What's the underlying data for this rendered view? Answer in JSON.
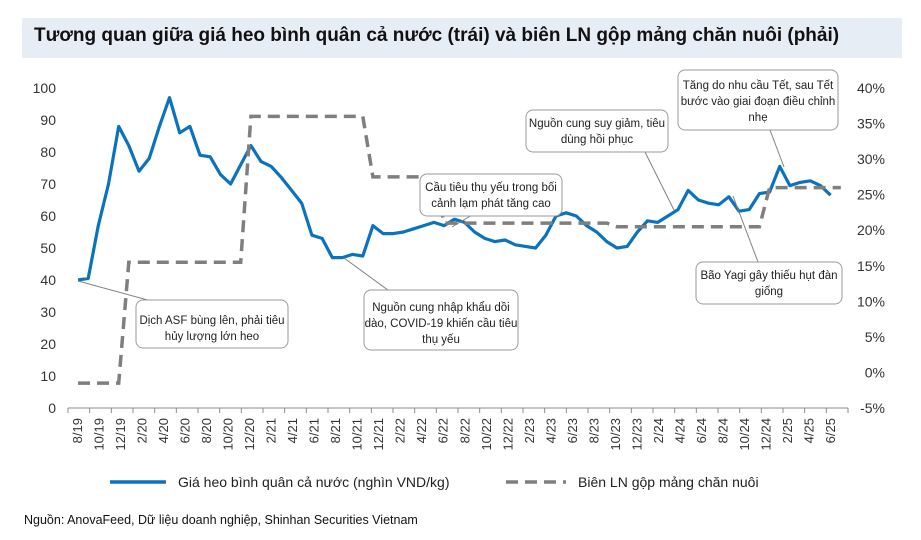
{
  "title": "Tương quan giữa giá heo bình quân cả nước (trái) và biên LN gộp mảng chăn nuôi (phải)",
  "source": "Nguồn: AnovaFeed, Dữ liệu doanh nghiệp, Shinhan Securities Vietnam",
  "colors": {
    "price_line": "#0b72be",
    "margin_line": "#7f7f7f",
    "title_bg": "#e7edf5"
  },
  "chart_data": {
    "type": "line",
    "x_tick_labels": [
      "8/19",
      "10/19",
      "12/19",
      "2/20",
      "4/20",
      "6/20",
      "8/20",
      "10/20",
      "12/20",
      "2/21",
      "4/21",
      "6/21",
      "8/21",
      "10/21",
      "12/21",
      "2/22",
      "4/22",
      "6/22",
      "8/22",
      "10/22",
      "12/22",
      "2/23",
      "4/23",
      "6/23",
      "8/23",
      "10/23",
      "12/23",
      "2/24",
      "4/24",
      "6/24",
      "8/24",
      "10/24",
      "12/24",
      "2/25",
      "4/25",
      "6/25"
    ],
    "y_left": {
      "ticks": [
        "0",
        "10",
        "20",
        "30",
        "40",
        "50",
        "60",
        "70",
        "80",
        "90",
        "100"
      ],
      "range": [
        0,
        100
      ]
    },
    "y_right": {
      "ticks": [
        "-5%",
        "0%",
        "5%",
        "10%",
        "15%",
        "20%",
        "25%",
        "30%",
        "35%",
        "40%"
      ],
      "range": [
        -5,
        40
      ]
    },
    "series": [
      {
        "name": "Giá heo bình quân cả nước (nghìn VND/kg)",
        "axis": "left",
        "style": "solid",
        "x": [
          0,
          1,
          2,
          3,
          4,
          5,
          6,
          7,
          8,
          9,
          10,
          11,
          12,
          13,
          14,
          15,
          16,
          17,
          18,
          19,
          20,
          21,
          22,
          23,
          24,
          25,
          26,
          27,
          28,
          29,
          30,
          31,
          32,
          33,
          34,
          35,
          36,
          37,
          38,
          39,
          40,
          41,
          42,
          43,
          44,
          45,
          46,
          47,
          48,
          49,
          50,
          51,
          52,
          53,
          54,
          55,
          56,
          57,
          58,
          59,
          60,
          61,
          62,
          63,
          64,
          65,
          66,
          67,
          68,
          69,
          70,
          71,
          72,
          73,
          74
        ],
        "values": [
          40,
          40.5,
          57,
          70,
          88,
          82,
          74,
          78,
          88,
          97,
          86,
          88,
          79,
          78.5,
          73,
          70,
          76,
          82,
          77,
          75.5,
          72,
          68,
          64,
          54,
          53,
          47,
          47,
          48,
          47.5,
          57,
          54.5,
          54.5,
          55,
          56,
          57,
          58,
          57,
          59,
          58,
          55,
          53,
          52,
          52.5,
          51,
          50.5,
          50,
          54,
          60,
          61,
          60,
          57,
          55,
          52,
          50,
          50.5,
          55,
          58.5,
          58,
          60,
          62,
          68,
          65,
          64,
          63.5,
          66,
          61.5,
          62,
          67,
          67.5,
          75.5,
          69.5,
          70.5,
          71,
          69.5,
          66.5
        ]
      },
      {
        "name": "Biên LN gộp mảng chăn nuôi",
        "axis": "right",
        "style": "dashed",
        "x": [
          0,
          4,
          5,
          16,
          17,
          28,
          29,
          35,
          36,
          52,
          53,
          65,
          66,
          67,
          68,
          75
        ],
        "values": [
          -1.5,
          -1.5,
          15.5,
          15.5,
          36,
          36,
          27.5,
          27.5,
          21,
          21,
          20.5,
          20.5,
          20.5,
          20.5,
          26,
          26
        ]
      }
    ],
    "annotations": [
      "Dịch ASF bùng lên, phải tiêu hủy lượng lớn heo",
      "Nguồn cung nhập khẩu dồi dào, COVID-19 khiến cầu tiêu thụ yếu",
      "Cầu tiêu thụ yếu trong bối cảnh lạm phát tăng cao",
      "Nguồn cung suy giảm, tiêu dùng hồi phục",
      "Tăng do nhu cầu Tết, sau Tết bước vào giai đoạn điều chỉnh nhẹ",
      "Bão Yagi gây thiếu hụt đàn giống"
    ],
    "legend": {
      "position": "bottom"
    },
    "grid": false
  }
}
